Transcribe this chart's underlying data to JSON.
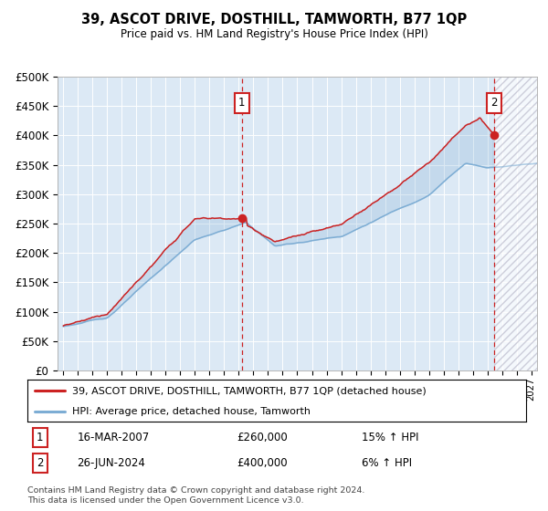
{
  "title": "39, ASCOT DRIVE, DOSTHILL, TAMWORTH, B77 1QP",
  "subtitle": "Price paid vs. HM Land Registry's House Price Index (HPI)",
  "legend_line1": "39, ASCOT DRIVE, DOSTHILL, TAMWORTH, B77 1QP (detached house)",
  "legend_line2": "HPI: Average price, detached house, Tamworth",
  "marker1_date": "16-MAR-2007",
  "marker1_price": "£260,000",
  "marker1_hpi": "15% ↑ HPI",
  "marker1_x_year": 2007.21,
  "marker1_y": 260000,
  "marker2_date": "26-JUN-2024",
  "marker2_price": "£400,000",
  "marker2_hpi": "6% ↑ HPI",
  "marker2_x_year": 2024.48,
  "marker2_y": 400000,
  "hpi_color": "#7dadd4",
  "price_color": "#cc2222",
  "background_color": "#dce9f5",
  "ylim": [
    0,
    500000
  ],
  "yticks": [
    0,
    50000,
    100000,
    150000,
    200000,
    250000,
    300000,
    350000,
    400000,
    450000,
    500000
  ],
  "xlim_start": 1994.6,
  "xlim_end": 2027.4,
  "footer": "Contains HM Land Registry data © Crown copyright and database right 2024.\nThis data is licensed under the Open Government Licence v3.0."
}
